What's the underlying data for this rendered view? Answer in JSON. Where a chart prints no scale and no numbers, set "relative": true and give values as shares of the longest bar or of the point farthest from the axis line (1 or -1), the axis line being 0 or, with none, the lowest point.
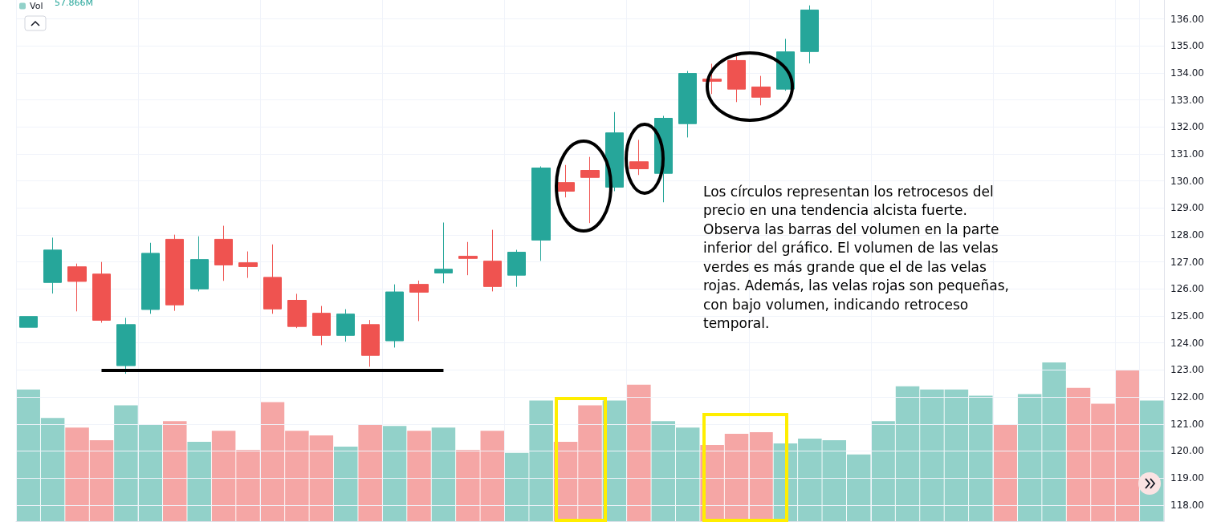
{
  "chart_data": [
    {
      "type": "candlestick",
      "categories": [
        null,
        null,
        null,
        null,
        null,
        null,
        null,
        null,
        null,
        null,
        null,
        null,
        null,
        null,
        null,
        null,
        null,
        null,
        null,
        null,
        null,
        null,
        null,
        null,
        null,
        null,
        null,
        null,
        null,
        null,
        null,
        null,
        null,
        null,
        null,
        null,
        null,
        null,
        null,
        null,
        null,
        null,
        null,
        null,
        null,
        null,
        null
      ],
      "ohlc": [
        [
          124.58,
          124.98,
          124.58,
          124.98
        ],
        [
          126.24,
          127.9,
          125.83,
          127.44
        ],
        [
          126.82,
          126.94,
          125.17,
          126.28
        ],
        [
          126.55,
          127.0,
          124.75,
          124.84
        ],
        [
          123.16,
          124.93,
          122.86,
          124.68
        ],
        [
          125.24,
          127.71,
          125.08,
          127.32
        ],
        [
          127.84,
          128.01,
          125.19,
          125.41
        ],
        [
          126.0,
          127.95,
          125.91,
          127.09
        ],
        [
          127.84,
          128.34,
          126.3,
          126.89
        ],
        [
          126.97,
          127.39,
          126.41,
          126.83
        ],
        [
          126.43,
          127.65,
          125.08,
          125.26
        ],
        [
          125.58,
          125.82,
          124.55,
          124.61
        ],
        [
          125.1,
          125.37,
          123.92,
          124.28
        ],
        [
          124.28,
          125.25,
          124.05,
          125.07
        ],
        [
          124.68,
          124.85,
          123.12,
          123.54
        ],
        [
          124.08,
          126.17,
          123.83,
          125.89
        ],
        [
          126.17,
          126.31,
          124.81,
          125.88
        ],
        [
          126.59,
          128.46,
          126.21,
          126.73
        ],
        [
          127.21,
          127.74,
          126.51,
          127.13
        ],
        [
          127.03,
          128.19,
          125.91,
          126.09
        ],
        [
          126.51,
          127.45,
          126.08,
          127.36
        ],
        [
          127.81,
          130.54,
          127.04,
          130.48
        ],
        [
          129.94,
          130.59,
          129.39,
          129.62
        ],
        [
          130.39,
          130.89,
          128.44,
          130.13
        ],
        [
          129.77,
          132.55,
          129.62,
          131.78
        ],
        [
          130.71,
          131.52,
          130.22,
          130.45
        ],
        [
          130.28,
          132.41,
          129.21,
          132.32
        ],
        [
          132.12,
          134.07,
          131.61,
          133.98
        ],
        [
          133.77,
          134.34,
          133.22,
          133.69
        ],
        [
          134.46,
          134.64,
          132.92,
          133.4
        ],
        [
          133.48,
          133.89,
          132.8,
          133.1
        ],
        [
          133.4,
          135.26,
          133.34,
          134.78
        ],
        [
          134.79,
          136.5,
          134.35,
          136.33
        ],
        null,
        null,
        null,
        null,
        null,
        null,
        null,
        null,
        null,
        null,
        null,
        null,
        null,
        null
      ],
      "ylim": [
        117.4,
        136.7
      ],
      "yticks": [
        {
          "value": 118,
          "label": "118.00"
        },
        {
          "value": 119,
          "label": "119.00"
        },
        {
          "value": 120,
          "label": "120.00"
        },
        {
          "value": 121,
          "label": "121.00"
        },
        {
          "value": 122,
          "label": "122.00"
        },
        {
          "value": 123,
          "label": "123.00"
        },
        {
          "value": 124,
          "label": "124.00"
        },
        {
          "value": 125,
          "label": "125.00"
        },
        {
          "value": 126,
          "label": "126.00"
        },
        {
          "value": 127,
          "label": "127.00"
        },
        {
          "value": 128,
          "label": "128.00"
        },
        {
          "value": 129,
          "label": "129.00"
        },
        {
          "value": 130,
          "label": "130.00"
        },
        {
          "value": 131,
          "label": "131.00"
        },
        {
          "value": 132,
          "label": "132.00"
        },
        {
          "value": 133,
          "label": "133.00"
        },
        {
          "value": 134,
          "label": "134.00"
        },
        {
          "value": 135,
          "label": "135.00"
        },
        {
          "value": 136,
          "label": "136.00"
        }
      ],
      "ref_lines": [
        {
          "axis": "y",
          "value": 123,
          "color": "#000000"
        }
      ],
      "annotations": [
        "Los círculos representan los retrocesos del precio en una tendencia alcista fuerte.  Observa las barras del volumen en la parte inferior del gráfico. El volumen de las velas verdes es más grande que el de las velas rojas. Además, las velas rojas son pequeñas, con bajo volumen, indicando retroceso temporal."
      ],
      "grid": true,
      "tick_labels": "y"
    },
    {
      "type": "bar",
      "relative": true,
      "categories": [
        null,
        null,
        null,
        null,
        null,
        null,
        null,
        null,
        null,
        null,
        null,
        null,
        null,
        null,
        null,
        null,
        null,
        null,
        null,
        null,
        null,
        null,
        null,
        null,
        null,
        null,
        null,
        null,
        null,
        null,
        null,
        null,
        null,
        null,
        null,
        null,
        null,
        null,
        null,
        null,
        null,
        null,
        null,
        null,
        null,
        null,
        null
      ],
      "series": [
        {
          "name": "Vol",
          "colors": [
            "#92d1c9",
            "#92d1c9",
            "#f5a6a5",
            "#f5a6a5",
            "#92d1c9",
            "#92d1c9",
            "#f5a6a5",
            "#92d1c9",
            "#f5a6a5",
            "#f5a6a5",
            "#f5a6a5",
            "#f5a6a5",
            "#f5a6a5",
            "#92d1c9",
            "#f5a6a5",
            "#92d1c9",
            "#f5a6a5",
            "#92d1c9",
            "#f5a6a5",
            "#f5a6a5",
            "#92d1c9",
            "#92d1c9",
            "#f5a6a5",
            "#f5a6a5",
            "#92d1c9",
            "#f5a6a5",
            "#92d1c9",
            "#92d1c9",
            "#f5a6a5",
            "#f5a6a5",
            "#f5a6a5",
            "#92d1c9",
            "#92d1c9",
            "#92d1c9",
            "#92d1c9",
            "#92d1c9",
            "#92d1c9",
            "#92d1c9",
            "#92d1c9",
            "#92d1c9",
            "#f5a6a5",
            "#92d1c9",
            "#92d1c9",
            "#f5a6a5",
            "#f5a6a5",
            "#f5a6a5",
            "#92d1c9"
          ],
          "values": [
            0.83,
            0.65,
            0.59,
            0.51,
            0.73,
            0.61,
            0.63,
            0.5,
            0.57,
            0.45,
            0.75,
            0.57,
            0.54,
            0.47,
            0.61,
            0.6,
            0.57,
            0.59,
            0.45,
            0.57,
            0.43,
            0.76,
            0.5,
            0.73,
            0.76,
            0.86,
            0.63,
            0.59,
            0.48,
            0.55,
            0.56,
            0.49,
            0.52,
            0.51,
            0.42,
            0.63,
            0.85,
            0.83,
            0.83,
            0.79,
            0.61,
            0.8,
            1,
            0.84,
            0.74,
            0.95,
            0.76
          ]
        }
      ],
      "annotations": [
        "57.866M"
      ],
      "legend": "top left",
      "tick_labels": false
    }
  ]
}
